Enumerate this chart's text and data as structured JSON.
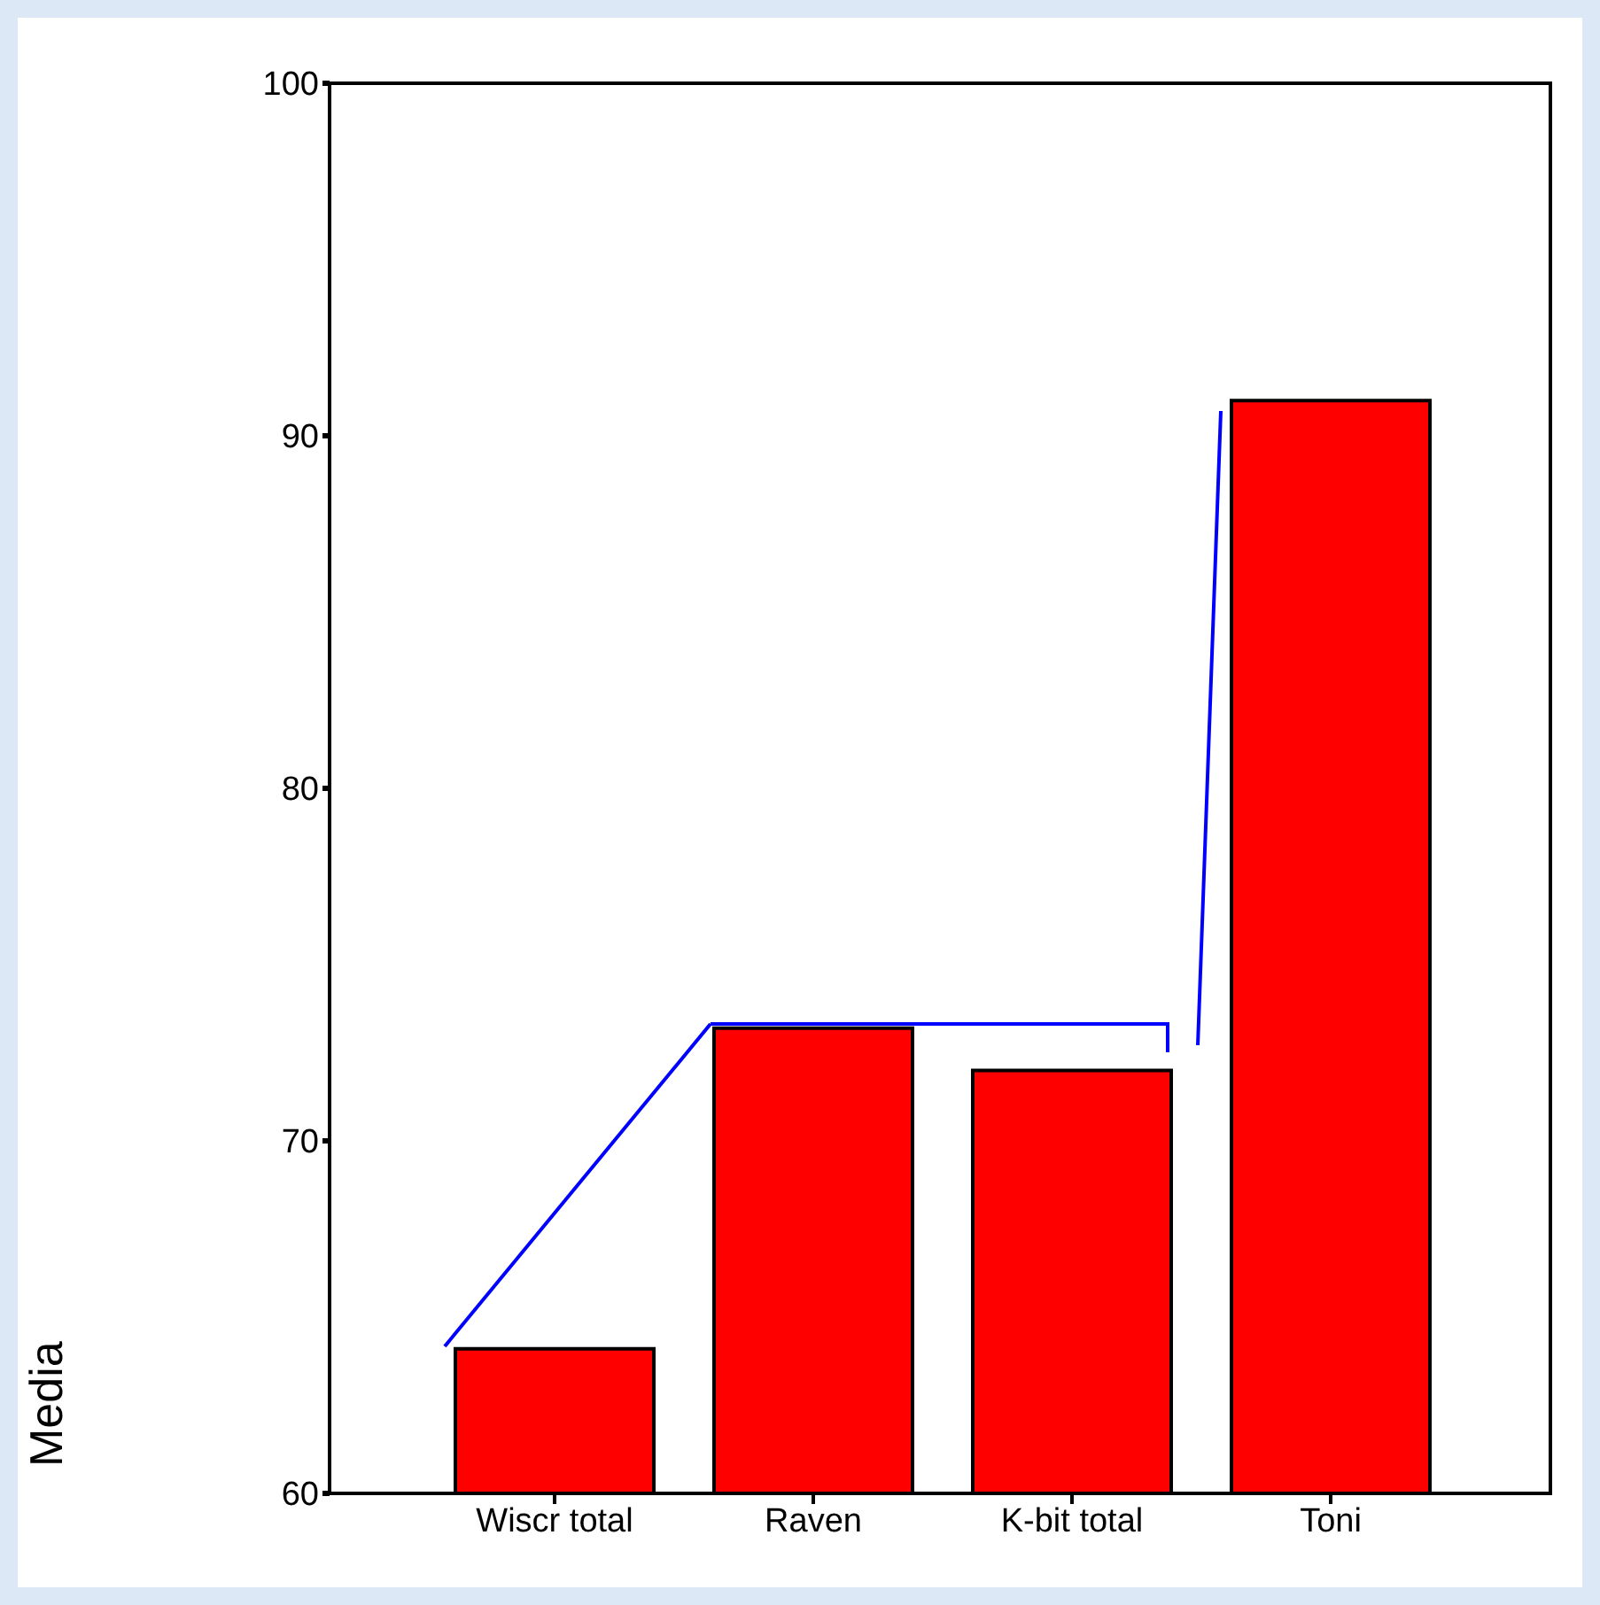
{
  "chart_data": {
    "type": "bar",
    "ylabel": "Media",
    "categories": [
      "Wiscr total",
      "Raven",
      "K-bit total",
      "Toni"
    ],
    "values": [
      64.1,
      73.2,
      72.0,
      91.0
    ],
    "color": "#ff0000",
    "ylim": [
      60,
      100
    ],
    "yticks": [
      60,
      70,
      80,
      90,
      100
    ],
    "grid": false
  }
}
